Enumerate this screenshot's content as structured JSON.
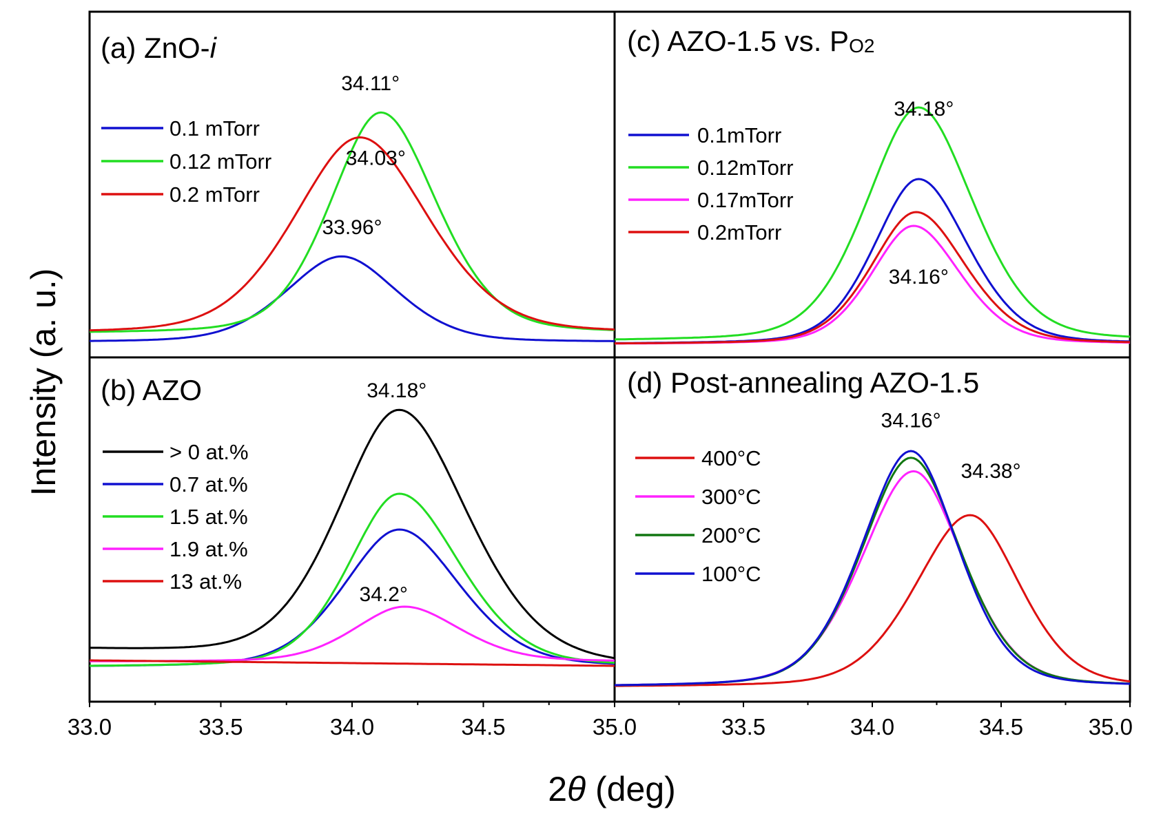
{
  "chart_data": {
    "type": "line",
    "xlabel_prefix": "2",
    "xlabel_symbol": "θ",
    "xlabel_suffix": " (deg)",
    "ylabel": "Intensity (a. u.)",
    "xlim": [
      33.0,
      35.0
    ],
    "xticks": [
      "33.0",
      "33.5",
      "34.0",
      "34.5",
      "35.0"
    ],
    "panels": [
      {
        "id": "a",
        "title": "(a) ZnO-",
        "title_italic": "i",
        "ylim": [
          0,
          1
        ],
        "peaks": [
          {
            "text": "34.11°",
            "x": 34.07,
            "y": 0.91
          },
          {
            "text": "34.03°",
            "x": 34.09,
            "y": 0.64
          },
          {
            "text": "33.96°",
            "x": 34.0,
            "y": 0.39
          }
        ],
        "series": [
          {
            "name": "0.1 mTorr",
            "color": "#1010d0",
            "x0": 33.96,
            "h": 0.31,
            "sl": 0.22,
            "sr": 0.22,
            "base": 0.0,
            "baseR": 0.0
          },
          {
            "name": "0.12 mTorr",
            "color": "#22dd22",
            "x0": 34.11,
            "h": 0.8,
            "sl": 0.2,
            "sr": 0.22,
            "base": 0.03,
            "baseR": 0.03
          },
          {
            "name": "0.2 mTorr",
            "color": "#dd1010",
            "x0": 34.03,
            "h": 0.71,
            "sl": 0.26,
            "sr": 0.27,
            "base": 0.03,
            "baseR": 0.03
          }
        ]
      },
      {
        "id": "b",
        "title": "(b) AZO",
        "ylim": [
          0,
          1
        ],
        "peaks": [
          {
            "text": "34.18°",
            "x": 34.17,
            "y": 1.02
          },
          {
            "text": "34.2°",
            "x": 34.12,
            "y": 0.28
          }
        ],
        "series": [
          {
            "name": "> 0 at.%",
            "color": "#000000",
            "x0": 34.18,
            "h": 0.91,
            "sl": 0.24,
            "sr": 0.27,
            "base": 0.1,
            "baseR": 0.04
          },
          {
            "name": "0.7 at.%",
            "color": "#1010d0",
            "x0": 34.18,
            "h": 0.5,
            "sl": 0.22,
            "sr": 0.24,
            "base": 0.04,
            "baseR": 0.04
          },
          {
            "name": "1.5 at.%",
            "color": "#22dd22",
            "x0": 34.18,
            "h": 0.63,
            "sl": 0.2,
            "sr": 0.24,
            "base": 0.04,
            "baseR": 0.04
          },
          {
            "name": "1.9 at.%",
            "color": "#ff22ff",
            "x0": 34.2,
            "h": 0.2,
            "sl": 0.2,
            "sr": 0.22,
            "base": 0.06,
            "baseR": 0.06
          },
          {
            "name": "13 at.%",
            "color": "#dd1010",
            "x0": 34.2,
            "h": 0.0,
            "sl": 0.2,
            "sr": 0.2,
            "base": 0.065,
            "baseR": 0.045
          }
        ]
      },
      {
        "id": "c",
        "title": "(c) AZO-1.5 vs. P",
        "title_sub": "O2",
        "ylim": [
          0,
          1
        ],
        "peaks": [
          {
            "text": "34.18°",
            "x": 34.2,
            "y": 0.83
          },
          {
            "text": "34.16°",
            "x": 34.18,
            "y": 0.22
          }
        ],
        "series": [
          {
            "name": "0.1mTorr",
            "color": "#1010d0",
            "x0": 34.18,
            "h": 0.6,
            "sl": 0.18,
            "sr": 0.2,
            "base": 0.0,
            "baseR": 0.0
          },
          {
            "name": "0.12mTorr",
            "color": "#22dd22",
            "x0": 34.18,
            "h": 0.85,
            "sl": 0.21,
            "sr": 0.22,
            "base": 0.01,
            "baseR": 0.01
          },
          {
            "name": "0.17mTorr",
            "color": "#ff22ff",
            "x0": 34.16,
            "h": 0.43,
            "sl": 0.17,
            "sr": 0.19,
            "base": 0.0,
            "baseR": 0.0
          },
          {
            "name": "0.2mTorr",
            "color": "#dd1010",
            "x0": 34.17,
            "h": 0.48,
            "sl": 0.18,
            "sr": 0.2,
            "base": 0.0,
            "baseR": 0.0
          }
        ]
      },
      {
        "id": "d",
        "title": "(d) Post-annealing AZO-1.5",
        "ylim": [
          0,
          1
        ],
        "peaks": [
          {
            "text": "34.16°",
            "x": 34.15,
            "y": 0.77
          },
          {
            "text": "34.38°",
            "x": 34.46,
            "y": 0.62
          }
        ],
        "series": [
          {
            "name": "400°C",
            "color": "#dd1010",
            "x0": 34.38,
            "h": 0.51,
            "sl": 0.22,
            "sr": 0.2,
            "base": 0.0,
            "baseR": 0.0
          },
          {
            "name": "300°C",
            "color": "#ff22ff",
            "x0": 34.16,
            "h": 0.64,
            "sl": 0.21,
            "sr": 0.2,
            "base": 0.0,
            "baseR": 0.0
          },
          {
            "name": "200°C",
            "color": "#117711",
            "x0": 34.15,
            "h": 0.68,
            "sl": 0.2,
            "sr": 0.2,
            "base": 0.0,
            "baseR": 0.0
          },
          {
            "name": "100°C",
            "color": "#1010d0",
            "x0": 34.15,
            "h": 0.7,
            "sl": 0.2,
            "sr": 0.19,
            "base": 0.0,
            "baseR": 0.0
          }
        ]
      }
    ]
  }
}
